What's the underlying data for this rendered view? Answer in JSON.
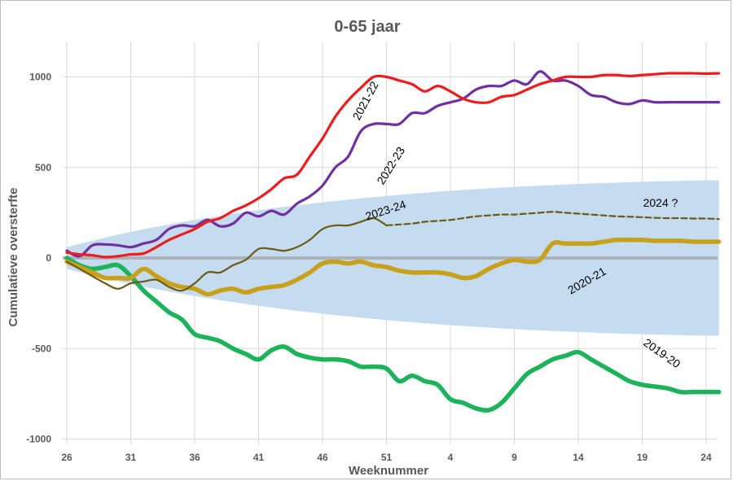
{
  "chart_data": {
    "type": "line",
    "title": "0-65 jaar",
    "xlabel": "Weeknummer",
    "ylabel": "Cumulatieve oversterfte",
    "x_tick_labels": [
      "26",
      "31",
      "36",
      "41",
      "46",
      "51",
      "4",
      "9",
      "14",
      "19",
      "24"
    ],
    "y_ticks": [
      1000,
      500,
      0,
      -500,
      -1000
    ],
    "y_tick_labels": [
      "1000",
      "500",
      "0",
      "-500",
      "-1000"
    ],
    "ylim": [
      -1000,
      1100
    ],
    "x_range_weeks_index": [
      0,
      51
    ],
    "grid": true,
    "legend": "none (series labelled inline)",
    "band": {
      "name": "uncertainty band",
      "color": "#c5dcf0",
      "x": [
        0,
        51
      ],
      "upper": [
        60,
        430
      ],
      "lower": [
        -60,
        -430
      ]
    },
    "series": [
      {
        "name": "2021-22",
        "color": "#ee1c1c",
        "width": 3.2,
        "x": [
          0,
          1,
          2,
          3,
          4,
          5,
          6,
          7,
          8,
          9,
          10,
          11,
          12,
          13,
          14,
          15,
          16,
          17,
          18,
          19,
          20,
          21,
          22,
          23,
          24,
          25,
          26,
          27,
          28,
          29,
          30,
          31,
          32,
          33,
          34,
          35,
          36,
          37,
          38,
          39,
          40,
          41,
          42,
          43,
          44,
          45,
          46,
          47,
          48,
          49,
          50,
          51
        ],
        "values": [
          30,
          20,
          15,
          5,
          10,
          20,
          25,
          60,
          100,
          130,
          160,
          200,
          220,
          260,
          290,
          330,
          380,
          440,
          460,
          560,
          660,
          780,
          870,
          940,
          1000,
          1000,
          980,
          960,
          920,
          950,
          920,
          880,
          860,
          860,
          890,
          900,
          930,
          960,
          980,
          1000,
          1000,
          1000,
          1010,
          1010,
          1005,
          1010,
          1015,
          1020,
          1020,
          1020,
          1018,
          1020
        ]
      },
      {
        "name": "2022-23",
        "color": "#7030a0",
        "width": 3.2,
        "x": [
          0,
          1,
          2,
          3,
          4,
          5,
          6,
          7,
          8,
          9,
          10,
          11,
          12,
          13,
          14,
          15,
          16,
          17,
          18,
          19,
          20,
          21,
          22,
          23,
          24,
          25,
          26,
          27,
          28,
          29,
          30,
          31,
          32,
          33,
          34,
          35,
          36,
          37,
          38,
          39,
          40,
          41,
          42,
          43,
          44,
          45,
          46,
          47,
          48,
          49,
          50,
          51
        ],
        "values": [
          40,
          10,
          70,
          75,
          70,
          60,
          80,
          100,
          160,
          180,
          175,
          210,
          175,
          190,
          250,
          230,
          260,
          240,
          300,
          340,
          400,
          500,
          560,
          700,
          740,
          740,
          740,
          800,
          800,
          840,
          860,
          880,
          930,
          950,
          950,
          980,
          960,
          1030,
          980,
          980,
          950,
          900,
          890,
          860,
          850,
          870,
          860,
          860,
          860,
          860,
          860,
          860
        ]
      },
      {
        "name": "2023-24",
        "color": "#6b5a14",
        "width": 2.2,
        "x": [
          0,
          1,
          2,
          3,
          4,
          5,
          6,
          7,
          8,
          9,
          10,
          11,
          12,
          13,
          14,
          15,
          16,
          17,
          18,
          19,
          20,
          21,
          22,
          23,
          24,
          25
        ],
        "values": [
          -20,
          -60,
          -100,
          -140,
          -170,
          -140,
          -130,
          -120,
          -160,
          -180,
          -140,
          -80,
          -80,
          -40,
          -10,
          50,
          50,
          40,
          60,
          100,
          160,
          180,
          180,
          200,
          220,
          180
        ]
      },
      {
        "name": "2024 ?",
        "color": "#6b5a14",
        "width": 2.2,
        "dashed": true,
        "x": [
          25,
          26,
          27,
          28,
          29,
          30,
          31,
          32,
          33,
          34,
          35,
          36,
          37,
          38,
          39,
          40,
          41,
          42,
          43,
          44,
          45,
          46,
          47,
          48,
          49,
          50,
          51
        ],
        "values": [
          180,
          185,
          190,
          200,
          205,
          210,
          220,
          230,
          235,
          240,
          240,
          245,
          250,
          255,
          250,
          245,
          240,
          235,
          230,
          228,
          225,
          222,
          220,
          220,
          218,
          218,
          215
        ]
      },
      {
        "name": "2020-21",
        "color": "#c9a01a",
        "width": 5.5,
        "x": [
          0,
          1,
          2,
          3,
          4,
          5,
          6,
          7,
          8,
          9,
          10,
          11,
          12,
          13,
          14,
          15,
          16,
          17,
          18,
          19,
          20,
          21,
          22,
          23,
          24,
          25,
          26,
          27,
          28,
          29,
          30,
          31,
          32,
          33,
          34,
          35,
          36,
          37,
          38,
          39,
          40,
          41,
          42,
          43,
          44,
          45,
          46,
          47,
          48,
          49,
          50,
          51
        ],
        "values": [
          -20,
          -50,
          -80,
          -110,
          -110,
          -110,
          -60,
          -100,
          -140,
          -160,
          -170,
          -200,
          -180,
          -170,
          -190,
          -170,
          -160,
          -150,
          -120,
          -80,
          -30,
          -20,
          -30,
          -20,
          -40,
          -50,
          -70,
          -80,
          -80,
          -80,
          -90,
          -110,
          -100,
          -60,
          -30,
          -10,
          -20,
          -10,
          80,
          80,
          80,
          80,
          90,
          100,
          100,
          100,
          95,
          95,
          95,
          90,
          90,
          90
        ]
      },
      {
        "name": "2019-20",
        "color": "#1db35a",
        "width": 5.5,
        "x": [
          0,
          1,
          2,
          3,
          4,
          5,
          6,
          7,
          8,
          9,
          10,
          11,
          12,
          13,
          14,
          15,
          16,
          17,
          18,
          19,
          20,
          21,
          22,
          23,
          24,
          25,
          26,
          27,
          28,
          29,
          30,
          31,
          32,
          33,
          34,
          35,
          36,
          37,
          38,
          39,
          40,
          41,
          42,
          43,
          44,
          45,
          46,
          47,
          48,
          49,
          50,
          51
        ],
        "values": [
          0,
          -40,
          -60,
          -50,
          -40,
          -100,
          -180,
          -240,
          -300,
          -340,
          -420,
          -440,
          -460,
          -500,
          -530,
          -560,
          -510,
          -490,
          -530,
          -550,
          -560,
          -560,
          -570,
          -600,
          -600,
          -610,
          -680,
          -650,
          -680,
          -700,
          -780,
          -800,
          -830,
          -840,
          -800,
          -720,
          -640,
          -600,
          -560,
          -540,
          -520,
          -560,
          -600,
          -640,
          -680,
          -700,
          -710,
          -720,
          -740,
          -740,
          -740,
          -740
        ]
      }
    ],
    "annotations": [
      "2021-22",
      "2022-23",
      "2023-24",
      "2024 ?",
      "2020-21",
      "2019-20"
    ]
  },
  "colors": {
    "grid": "#d9d9d9",
    "zero_line": "#a6a6a6",
    "text": "#595959"
  }
}
